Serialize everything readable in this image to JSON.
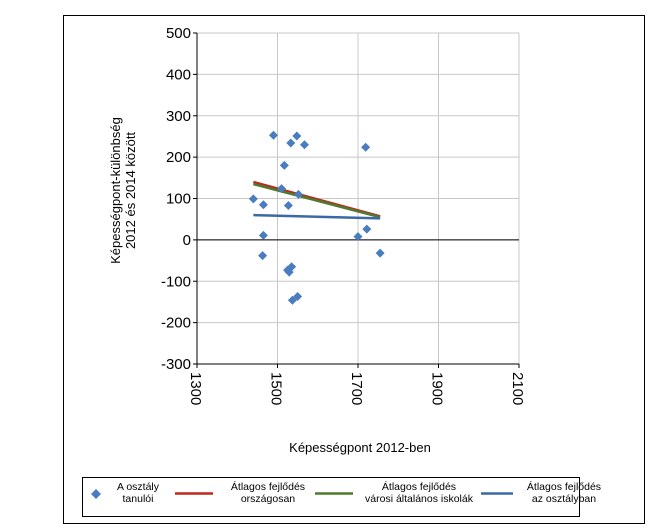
{
  "chart_data": {
    "type": "scatter",
    "title": "",
    "xlabel": "Képességpont 2012-ben",
    "ylabel": "Képességpont-különbség\n2012 és 2014 között",
    "xlim": [
      1300,
      2100
    ],
    "ylim": [
      -300,
      500
    ],
    "xticks": [
      "1300",
      "1500",
      "1700",
      "1900",
      "2100"
    ],
    "yticks": [
      "500",
      "400",
      "300",
      "200",
      "100",
      "0",
      "-100",
      "-200",
      "-300"
    ],
    "grid": true,
    "legend_position": "bottom",
    "series": [
      {
        "name": "A osztály\ntanulói",
        "kind": "points",
        "color": "#4a7dbf",
        "points": [
          [
            1440,
            99
          ],
          [
            1465,
            85
          ],
          [
            1465,
            11
          ],
          [
            1463,
            -38
          ],
          [
            1490,
            253
          ],
          [
            1510,
            124
          ],
          [
            1517,
            180
          ],
          [
            1527,
            83
          ],
          [
            1525,
            -73
          ],
          [
            1529,
            -78
          ],
          [
            1533,
            234
          ],
          [
            1535,
            -65
          ],
          [
            1537,
            -146
          ],
          [
            1548,
            251
          ],
          [
            1550,
            -137
          ],
          [
            1552,
            110
          ],
          [
            1567,
            230
          ],
          [
            1700,
            8
          ],
          [
            1719,
            224
          ],
          [
            1722,
            26
          ],
          [
            1755,
            -32
          ]
        ]
      },
      {
        "name": "Átlagos fejlődés\nországosan",
        "kind": "line",
        "color": "#c0271e",
        "points": [
          [
            1440,
            140
          ],
          [
            1755,
            57
          ]
        ]
      },
      {
        "name": "Átlagos fejlődés\nvárosi általános iskolák",
        "kind": "line",
        "color": "#4e7a2f",
        "points": [
          [
            1440,
            135
          ],
          [
            1755,
            55
          ]
        ]
      },
      {
        "name": "Átlagos fejlődés\naz osztályban",
        "kind": "line",
        "color": "#3a68a8",
        "points": [
          [
            1440,
            60
          ],
          [
            1755,
            52
          ]
        ]
      }
    ]
  }
}
